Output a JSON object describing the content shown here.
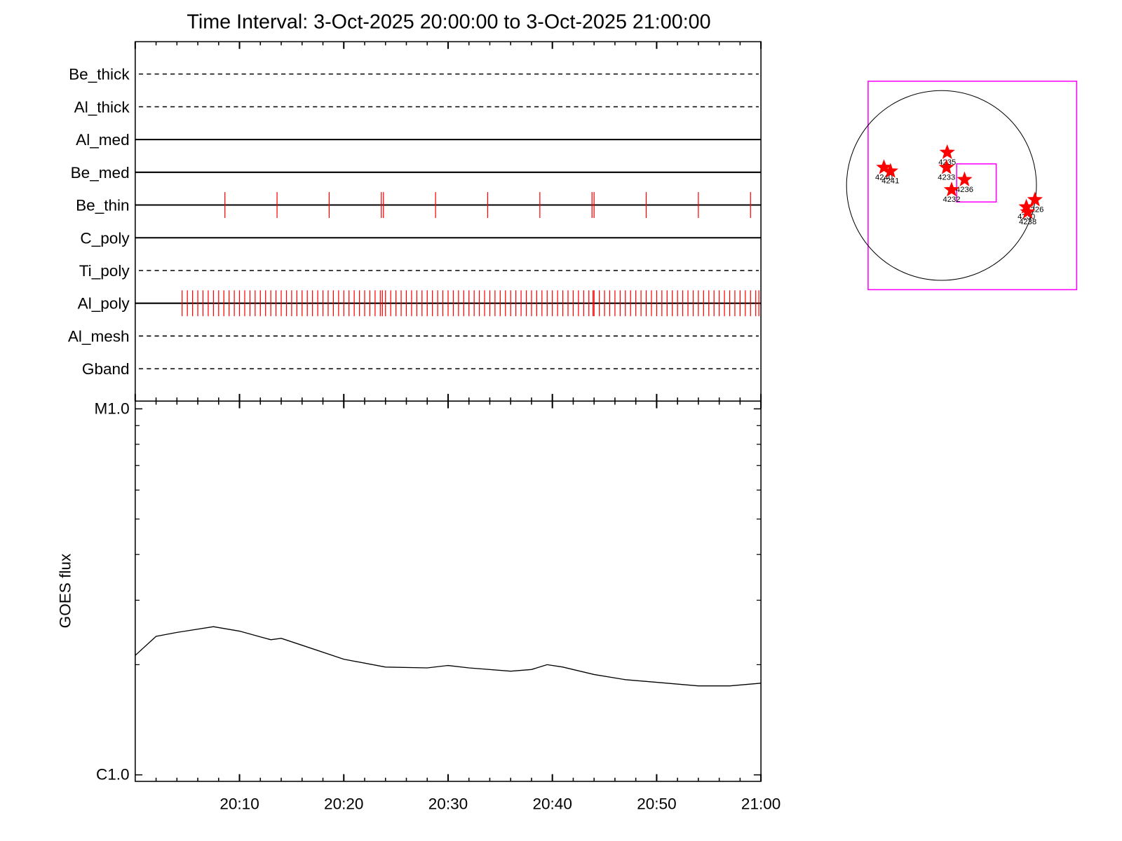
{
  "chart_data": [
    {
      "type": "timeline",
      "title": "Time Interval:  3-Oct-2025 20:00:00 to  3-Oct-2025 21:00:00",
      "xlim": [
        0,
        60
      ],
      "xticks": [
        0,
        10,
        20,
        30,
        40,
        50,
        60
      ],
      "xminorticks": [
        2,
        4,
        6,
        8,
        12,
        14,
        16,
        18,
        22,
        24,
        26,
        28,
        32,
        34,
        36,
        38,
        42,
        44,
        46,
        48,
        52,
        54,
        56,
        58
      ],
      "series": [
        {
          "name": "Be_thick",
          "style": "dashed",
          "color": "#ff0000",
          "x": []
        },
        {
          "name": "Al_thick",
          "style": "dashed",
          "color": "#ff0000",
          "x": []
        },
        {
          "name": "Al_med",
          "style": "solid",
          "color": "#ff0000",
          "x": []
        },
        {
          "name": "Be_med",
          "style": "solid",
          "color": "#ff0000",
          "x": []
        },
        {
          "name": "Be_thin",
          "style": "solid",
          "color": "#ff0000",
          "x": [
            8.6,
            13.6,
            18.6,
            23.6,
            23.8,
            28.8,
            33.8,
            38.8,
            43.8,
            44.0,
            49.0,
            54.0,
            59.0
          ]
        },
        {
          "name": "C_poly",
          "style": "solid",
          "color": "#ff0000",
          "x": []
        },
        {
          "name": "Ti_poly",
          "style": "dashed",
          "color": "#ff0000",
          "x": []
        },
        {
          "name": "Al_poly",
          "style": "solid",
          "color": "#ff0000",
          "x": [
            4.5,
            5.0,
            5.5,
            6.0,
            6.5,
            7.0,
            7.5,
            8.0,
            8.5,
            9.0,
            9.5,
            10.0,
            10.5,
            11.0,
            11.5,
            12.0,
            12.5,
            13.0,
            13.5,
            14.0,
            14.5,
            15.0,
            15.5,
            16.0,
            16.5,
            17.0,
            17.5,
            18.0,
            18.5,
            19.0,
            19.5,
            20.0,
            20.5,
            21.0,
            21.5,
            22.0,
            22.5,
            23.0,
            23.5,
            23.7,
            24.0,
            24.5,
            25.0,
            25.5,
            26.0,
            26.5,
            27.0,
            27.5,
            28.0,
            28.5,
            29.0,
            29.5,
            30.0,
            30.5,
            31.0,
            31.5,
            32.0,
            32.5,
            33.0,
            33.5,
            34.0,
            34.5,
            35.0,
            35.5,
            36.0,
            36.5,
            37.0,
            37.5,
            38.0,
            38.5,
            39.0,
            39.5,
            40.0,
            40.5,
            41.0,
            41.5,
            42.0,
            42.5,
            43.0,
            43.5,
            43.9,
            44.0,
            44.5,
            45.0,
            45.5,
            46.0,
            46.5,
            47.0,
            47.5,
            48.0,
            48.5,
            49.0,
            49.5,
            50.0,
            50.5,
            51.0,
            51.5,
            52.0,
            52.5,
            53.0,
            53.5,
            54.0,
            54.5,
            55.0,
            55.5,
            56.0,
            56.5,
            57.0,
            57.5,
            58.0,
            58.5,
            59.0,
            59.5,
            59.8
          ]
        },
        {
          "name": "Al_mesh",
          "style": "dashed",
          "color": "#ff0000",
          "x": []
        },
        {
          "name": "Gband",
          "style": "dashed",
          "color": "#ff0000",
          "x": []
        }
      ]
    },
    {
      "type": "line",
      "ylabel": "GOES flux",
      "log_scale": true,
      "color": "#000000",
      "xlim": [
        0,
        60
      ],
      "xticks": [
        {
          "value": 10,
          "label": "20:10"
        },
        {
          "value": 20,
          "label": "20:20"
        },
        {
          "value": 30,
          "label": "20:30"
        },
        {
          "value": 40,
          "label": "20:40"
        },
        {
          "value": 50,
          "label": "20:50"
        },
        {
          "value": 60,
          "label": "21:00"
        }
      ],
      "xminorticks": [
        2,
        4,
        6,
        8,
        12,
        14,
        16,
        18,
        22,
        24,
        26,
        28,
        32,
        34,
        36,
        38,
        42,
        44,
        46,
        48,
        52,
        54,
        56,
        58
      ],
      "ylim": [
        9.6e-07,
        1.05e-05
      ],
      "yticks": [
        {
          "value": 1e-06,
          "label": "C1.0"
        },
        {
          "value": 1e-05,
          "label": "M1.0"
        }
      ],
      "yminorticks": [
        2e-06,
        3e-06,
        4e-06,
        5e-06,
        6e-06,
        7e-06,
        8e-06,
        9e-06
      ],
      "x": [
        0,
        2,
        4,
        7.5,
        10,
        13,
        14,
        16,
        20,
        24,
        28,
        30,
        32,
        36,
        38,
        39.5,
        41,
        44,
        47,
        50,
        54,
        57,
        60
      ],
      "values": [
        2.12e-06,
        2.39e-06,
        2.45e-06,
        2.54e-06,
        2.47e-06,
        2.34e-06,
        2.36e-06,
        2.26e-06,
        2.07e-06,
        1.97e-06,
        1.96e-06,
        1.99e-06,
        1.96e-06,
        1.92e-06,
        1.94e-06,
        2e-06,
        1.97e-06,
        1.88e-06,
        1.82e-06,
        1.79e-06,
        1.75e-06,
        1.75e-06,
        1.78e-06
      ]
    },
    {
      "type": "disk",
      "xlim": [
        -742,
        1367
      ],
      "ylim": [
        -1054,
        1054
      ],
      "radius": 960,
      "fov": {
        "x": [
          153,
          553
        ],
        "y": [
          -167,
          218
        ]
      },
      "box_color": "#ff00ff",
      "star_color": "#ff0000",
      "points": [
        {
          "name": "4240",
          "x": -582,
          "y": 182
        },
        {
          "name": "4241",
          "x": -516,
          "y": 145
        },
        {
          "name": "4235",
          "x": 58,
          "y": 334
        },
        {
          "name": "4233",
          "x": 51,
          "y": 182
        },
        {
          "name": "4236",
          "x": 233,
          "y": 58
        },
        {
          "name": "4232",
          "x": 102,
          "y": -44
        },
        {
          "name": "4226",
          "x": 945,
          "y": -145
        },
        {
          "name": "4230",
          "x": 858,
          "y": -218
        },
        {
          "name": "4238",
          "x": 872,
          "y": -269
        }
      ]
    }
  ]
}
